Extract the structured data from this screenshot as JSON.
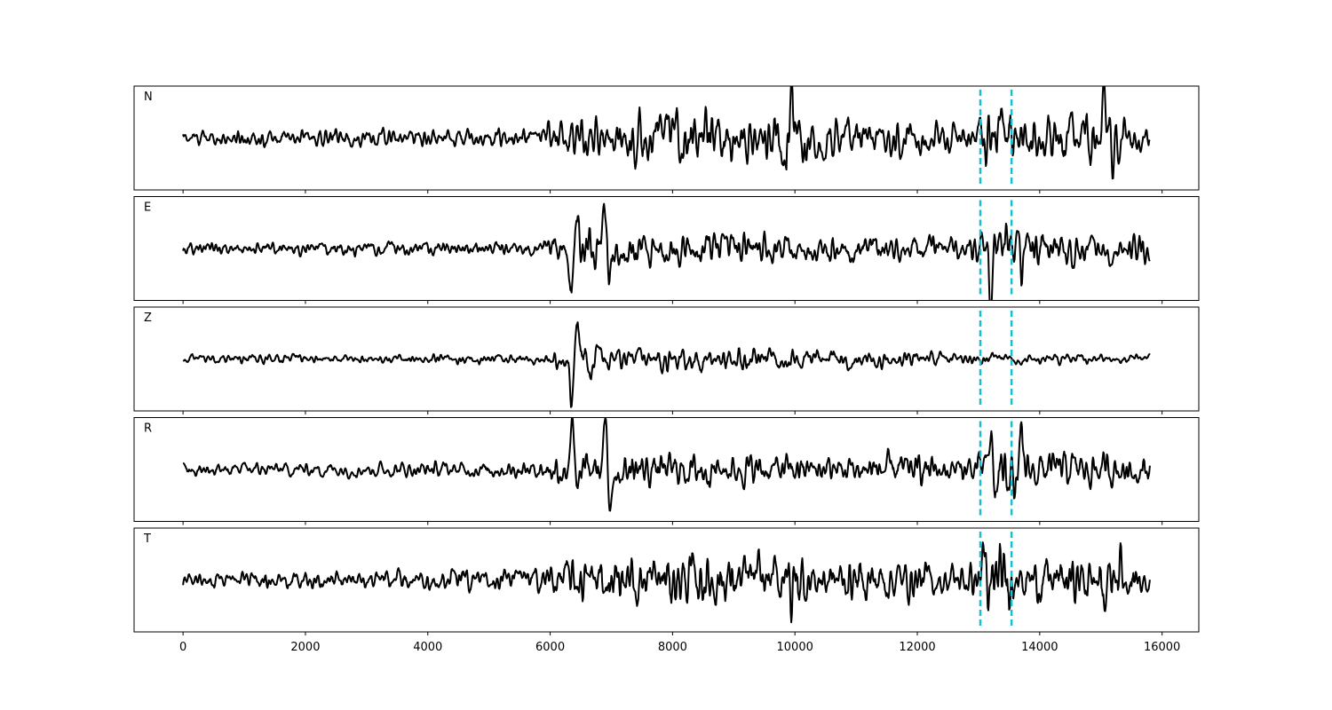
{
  "chart_data": {
    "type": "line",
    "title": "",
    "xlabel": "",
    "ylabel": "",
    "xlim": [
      -800,
      16600
    ],
    "x_ticks": [
      0,
      2000,
      4000,
      6000,
      8000,
      10000,
      12000,
      14000,
      16000
    ],
    "x_tick_labels": [
      "0",
      "2000",
      "4000",
      "6000",
      "8000",
      "10000",
      "12000",
      "14000",
      "16000"
    ],
    "samples": 15800,
    "grid": false,
    "legend": "none",
    "line_color": "#000000",
    "marker_color": "#17becf",
    "markers_x": [
      13030,
      13540
    ],
    "panels": [
      {
        "label": "N",
        "ylim": [
          -2.1,
          2.1
        ],
        "envelope": [
          [
            0,
            0.25
          ],
          [
            5800,
            0.35
          ],
          [
            6100,
            0.7
          ],
          [
            8000,
            0.9
          ],
          [
            9700,
            0.8
          ],
          [
            9850,
            1.7
          ],
          [
            10200,
            0.7
          ],
          [
            12900,
            0.5
          ],
          [
            13300,
            1.1
          ],
          [
            14000,
            0.7
          ],
          [
            15000,
            0.9
          ],
          [
            15800,
            0.6
          ]
        ],
        "events": [
          [
            9850,
            -1.8,
            30
          ],
          [
            9930,
            1.8,
            30
          ],
          [
            13120,
            -1.7,
            25
          ],
          [
            13520,
            1.2,
            25
          ],
          [
            15050,
            1.6,
            30
          ],
          [
            15200,
            -1.3,
            30
          ]
        ]
      },
      {
        "label": "E",
        "ylim": [
          -2.1,
          2.1
        ],
        "envelope": [
          [
            0,
            0.2
          ],
          [
            5800,
            0.25
          ],
          [
            6100,
            0.55
          ],
          [
            7000,
            0.75
          ],
          [
            8000,
            0.5
          ],
          [
            12900,
            0.45
          ],
          [
            13300,
            0.95
          ],
          [
            14000,
            0.6
          ],
          [
            15800,
            0.45
          ]
        ],
        "events": [
          [
            6350,
            -2.0,
            40
          ],
          [
            6450,
            1.2,
            40
          ],
          [
            6900,
            1.5,
            40
          ],
          [
            6970,
            -1.6,
            40
          ],
          [
            13200,
            -1.6,
            35
          ],
          [
            13650,
            1.3,
            35
          ],
          [
            13700,
            -1.1,
            35
          ]
        ]
      },
      {
        "label": "Z",
        "ylim": [
          -2.1,
          2.1
        ],
        "envelope": [
          [
            0,
            0.15
          ],
          [
            5800,
            0.18
          ],
          [
            6100,
            0.35
          ],
          [
            7000,
            0.45
          ],
          [
            10500,
            0.35
          ],
          [
            12900,
            0.2
          ],
          [
            15800,
            0.15
          ]
        ],
        "events": [
          [
            6350,
            -2.0,
            40
          ],
          [
            6440,
            1.6,
            40
          ],
          [
            6650,
            -0.7,
            40
          ],
          [
            6800,
            0.8,
            40
          ]
        ]
      },
      {
        "label": "R",
        "ylim": [
          -2.1,
          2.1
        ],
        "envelope": [
          [
            0,
            0.25
          ],
          [
            5800,
            0.3
          ],
          [
            6100,
            0.6
          ],
          [
            7000,
            0.85
          ],
          [
            8000,
            0.6
          ],
          [
            12900,
            0.55
          ],
          [
            13300,
            1.0
          ],
          [
            14000,
            0.75
          ],
          [
            15800,
            0.55
          ]
        ],
        "events": [
          [
            6350,
            2.1,
            40
          ],
          [
            6450,
            -1.2,
            40
          ],
          [
            6900,
            1.7,
            40
          ],
          [
            6970,
            -1.5,
            40
          ],
          [
            13200,
            1.6,
            35
          ],
          [
            13280,
            -1.3,
            35
          ],
          [
            13600,
            -1.2,
            35
          ],
          [
            13700,
            1.1,
            35
          ]
        ]
      },
      {
        "label": "T",
        "ylim": [
          -2.1,
          2.1
        ],
        "envelope": [
          [
            0,
            0.25
          ],
          [
            5800,
            0.4
          ],
          [
            6100,
            0.75
          ],
          [
            8000,
            0.95
          ],
          [
            9700,
            0.9
          ],
          [
            9850,
            1.4
          ],
          [
            10200,
            0.8
          ],
          [
            12900,
            0.6
          ],
          [
            13300,
            1.1
          ],
          [
            14000,
            0.75
          ],
          [
            15000,
            0.9
          ],
          [
            15800,
            0.6
          ]
        ],
        "events": [
          [
            9850,
            1.6,
            30
          ],
          [
            9930,
            -1.7,
            30
          ],
          [
            13080,
            1.9,
            25
          ],
          [
            13160,
            -1.9,
            25
          ],
          [
            13620,
            1.4,
            25
          ],
          [
            15050,
            -1.1,
            30
          ],
          [
            15320,
            1.2,
            30
          ]
        ]
      }
    ]
  }
}
